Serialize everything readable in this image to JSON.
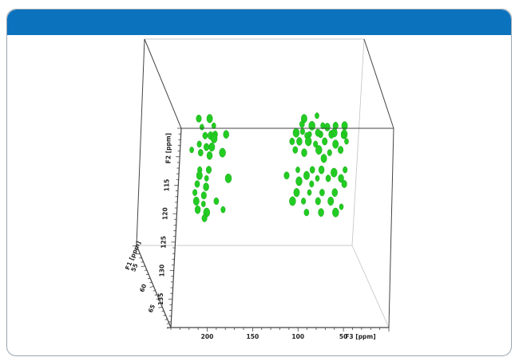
{
  "chart_data": {
    "type": "scatter",
    "subtype": "3d-nmr-spectrum",
    "title": "",
    "colors": {
      "peak": "#22cc22",
      "box": "#444444",
      "header": "#0b72bd"
    },
    "axes": {
      "f3": {
        "label": "F3 [ppm]",
        "ticks": [
          200,
          150,
          100,
          50
        ],
        "range": [
          240,
          0
        ],
        "reversed": true
      },
      "f2": {
        "label": "F2 [ppm]",
        "ticks": [
          115,
          120,
          125,
          130,
          135
        ],
        "range": [
          105,
          140
        ],
        "reversed": true
      },
      "f1": {
        "label": "F1 [ppm]",
        "ticks": [
          55,
          60,
          65
        ],
        "range": [
          50,
          70
        ]
      }
    },
    "peaks": [
      {
        "f3": 200,
        "f2": 106,
        "f1": 68
      },
      {
        "f3": 198,
        "f2": 107.5,
        "f1": 68
      },
      {
        "f3": 186,
        "f2": 107.5,
        "f1": 68
      },
      {
        "f3": 92,
        "f2": 106,
        "f1": 68
      },
      {
        "f3": 80,
        "f2": 106,
        "f1": 68
      },
      {
        "f3": 66,
        "f2": 106,
        "f1": 68
      },
      {
        "f3": 56,
        "f2": 106,
        "f1": 68
      },
      {
        "f3": 94,
        "f2": 107.5,
        "f1": 68
      },
      {
        "f3": 82,
        "f2": 107.5,
        "f1": 68
      },
      {
        "f3": 70,
        "f2": 107.5,
        "f1": 68
      },
      {
        "f3": 56,
        "f2": 107.5,
        "f1": 68
      },
      {
        "f3": 102,
        "f2": 107,
        "f1": 68
      },
      {
        "f3": 200,
        "f2": 110.5,
        "f1": 60
      },
      {
        "f3": 188,
        "f2": 110.5,
        "f1": 60
      },
      {
        "f3": 196,
        "f2": 112,
        "f1": 60
      },
      {
        "f3": 192,
        "f2": 113.5,
        "f1": 60
      },
      {
        "f3": 186,
        "f2": 113.5,
        "f1": 60
      },
      {
        "f3": 182,
        "f2": 114,
        "f1": 60
      },
      {
        "f3": 198,
        "f2": 115,
        "f1": 60
      },
      {
        "f3": 190,
        "f2": 115.5,
        "f1": 60
      },
      {
        "f3": 184,
        "f2": 115.5,
        "f1": 60
      },
      {
        "f3": 206,
        "f2": 116,
        "f1": 60
      },
      {
        "f3": 196,
        "f2": 116.5,
        "f1": 60
      },
      {
        "f3": 186,
        "f2": 117,
        "f1": 60
      },
      {
        "f3": 172,
        "f2": 116.5,
        "f1": 60
      },
      {
        "f3": 196,
        "f2": 119.5,
        "f1": 60
      },
      {
        "f3": 186,
        "f2": 119.5,
        "f1": 60
      },
      {
        "f3": 196,
        "f2": 120.5,
        "f1": 60
      },
      {
        "f3": 188,
        "f2": 121,
        "f1": 60
      },
      {
        "f3": 198,
        "f2": 122,
        "f1": 60
      },
      {
        "f3": 188,
        "f2": 122.5,
        "f1": 60
      },
      {
        "f3": 164,
        "f2": 121,
        "f1": 60
      },
      {
        "f3": 200,
        "f2": 123.5,
        "f1": 60
      },
      {
        "f3": 190,
        "f2": 124,
        "f1": 60
      },
      {
        "f3": 198,
        "f2": 125,
        "f1": 60
      },
      {
        "f3": 190,
        "f2": 125.5,
        "f1": 60
      },
      {
        "f3": 176,
        "f2": 125,
        "f1": 60
      },
      {
        "f3": 196,
        "f2": 126.5,
        "f1": 60
      },
      {
        "f3": 186,
        "f2": 127,
        "f1": 60
      },
      {
        "f3": 168,
        "f2": 126.5,
        "f1": 60
      },
      {
        "f3": 188,
        "f2": 128,
        "f1": 60
      },
      {
        "f3": 84,
        "f2": 110.5,
        "f1": 60
      },
      {
        "f3": 70,
        "f2": 110,
        "f1": 60
      },
      {
        "f3": 86,
        "f2": 111.5,
        "f1": 60
      },
      {
        "f3": 58,
        "f2": 112,
        "f1": 60
      },
      {
        "f3": 92,
        "f2": 113,
        "f1": 60
      },
      {
        "f3": 80,
        "f2": 113.5,
        "f1": 60
      },
      {
        "f3": 68,
        "f2": 113,
        "f1": 60
      },
      {
        "f3": 50,
        "f2": 113,
        "f1": 60
      },
      {
        "f3": 40,
        "f2": 113.5,
        "f1": 60
      },
      {
        "f3": 96,
        "f2": 114.5,
        "f1": 60
      },
      {
        "f3": 88,
        "f2": 114.5,
        "f1": 60
      },
      {
        "f3": 78,
        "f2": 114.5,
        "f1": 60
      },
      {
        "f3": 70,
        "f2": 115,
        "f1": 60
      },
      {
        "f3": 60,
        "f2": 114.5,
        "f1": 60
      },
      {
        "f3": 48,
        "f2": 115,
        "f1": 60
      },
      {
        "f3": 36,
        "f2": 114.5,
        "f1": 60
      },
      {
        "f3": 92,
        "f2": 116,
        "f1": 60
      },
      {
        "f3": 82,
        "f2": 116.5,
        "f1": 60
      },
      {
        "f3": 66,
        "f2": 116,
        "f1": 60
      },
      {
        "f3": 54,
        "f2": 116.5,
        "f1": 60
      },
      {
        "f3": 42,
        "f2": 116,
        "f1": 60
      },
      {
        "f3": 60,
        "f2": 117.5,
        "f1": 60
      },
      {
        "f3": 88,
        "f2": 119.5,
        "f1": 60
      },
      {
        "f3": 72,
        "f2": 119.5,
        "f1": 60
      },
      {
        "f3": 62,
        "f2": 119.5,
        "f1": 60
      },
      {
        "f3": 48,
        "f2": 120,
        "f1": 60
      },
      {
        "f3": 36,
        "f2": 119.5,
        "f1": 60
      },
      {
        "f3": 100,
        "f2": 120.5,
        "f1": 60
      },
      {
        "f3": 78,
        "f2": 120.5,
        "f1": 60
      },
      {
        "f3": 66,
        "f2": 121,
        "f1": 60
      },
      {
        "f3": 54,
        "f2": 121,
        "f1": 60
      },
      {
        "f3": 40,
        "f2": 121,
        "f1": 60
      },
      {
        "f3": 86,
        "f2": 121.5,
        "f1": 60
      },
      {
        "f3": 72,
        "f2": 122,
        "f1": 60
      },
      {
        "f3": 36,
        "f2": 122,
        "f1": 60
      },
      {
        "f3": 88,
        "f2": 123.5,
        "f1": 60
      },
      {
        "f3": 74,
        "f2": 123.5,
        "f1": 60
      },
      {
        "f3": 60,
        "f2": 123.5,
        "f1": 60
      },
      {
        "f3": 46,
        "f2": 123.5,
        "f1": 60
      },
      {
        "f3": 92,
        "f2": 125,
        "f1": 60
      },
      {
        "f3": 80,
        "f2": 125,
        "f1": 60
      },
      {
        "f3": 64,
        "f2": 125,
        "f1": 60
      },
      {
        "f3": 50,
        "f2": 125,
        "f1": 60
      },
      {
        "f3": 38,
        "f2": 126,
        "f1": 60
      },
      {
        "f3": 76,
        "f2": 127,
        "f1": 60
      },
      {
        "f3": 60,
        "f2": 127,
        "f1": 60
      },
      {
        "f3": 44,
        "f2": 127,
        "f1": 60
      }
    ]
  }
}
